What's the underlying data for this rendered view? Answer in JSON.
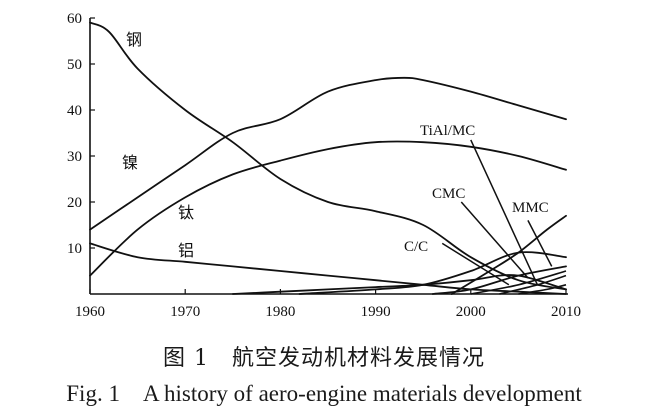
{
  "chart_data": {
    "type": "line",
    "x": [
      1960,
      1965,
      1970,
      1975,
      1980,
      1985,
      1990,
      1995,
      2000,
      2005,
      2010
    ],
    "xlim": [
      1960,
      2010
    ],
    "ylim": [
      0,
      60
    ],
    "xticks": [
      1960,
      1970,
      1980,
      1990,
      2000,
      2010
    ],
    "yticks": [
      10,
      20,
      30,
      40,
      50,
      60
    ],
    "grid": false,
    "legend": "inline labels",
    "series": [
      {
        "name": "钢",
        "x": [
          1960,
          1962,
          1965,
          1970,
          1975,
          1980,
          1985,
          1990,
          1995,
          2000,
          2005,
          2010
        ],
        "values": [
          59,
          57,
          49,
          40,
          33,
          25,
          20,
          18,
          15,
          8,
          3,
          1
        ]
      },
      {
        "name": "镍",
        "x": [
          1960,
          1965,
          1970,
          1975,
          1980,
          1985,
          1990,
          1993,
          1995,
          2000,
          2005,
          2010
        ],
        "values": [
          14,
          21,
          28,
          35,
          38,
          44,
          46.5,
          47,
          46.5,
          44,
          41,
          38
        ]
      },
      {
        "name": "钛",
        "x": [
          1960,
          1965,
          1970,
          1975,
          1980,
          1985,
          1990,
          1995,
          2000,
          2005,
          2010
        ],
        "values": [
          4,
          14,
          21,
          26,
          29,
          31.5,
          33,
          33,
          32,
          30,
          27
        ]
      },
      {
        "name": "铝",
        "x": [
          1960,
          1965,
          1970,
          1975,
          1980,
          1985,
          1990,
          1995,
          2000,
          2005,
          2010
        ],
        "values": [
          11,
          8,
          7,
          6,
          5,
          4,
          3,
          2,
          1,
          0.5,
          0
        ]
      },
      {
        "name": "C/C",
        "x": [
          1975,
          1980,
          1985,
          1990,
          1995,
          2000,
          2003,
          2005,
          2007,
          2010
        ],
        "values": [
          0,
          0.5,
          1,
          1.5,
          2,
          3,
          4,
          4,
          3,
          1
        ]
      },
      {
        "name": "CMC",
        "x": [
          1982,
          1990,
          1995,
          2000,
          2005,
          2010
        ],
        "values": [
          0,
          1,
          2,
          5,
          9,
          8
        ]
      },
      {
        "name": "MMC",
        "x": [
          1998,
          2002,
          2005,
          2008,
          2010
        ],
        "values": [
          0,
          5,
          9,
          14,
          17
        ]
      },
      {
        "name": "TiAl/MC",
        "x": [
          1996,
          2000,
          2005,
          2010
        ],
        "values": [
          0,
          1,
          4,
          6
        ]
      }
    ],
    "extra_lines": [
      {
        "x": [
          2000,
          2005,
          2010
        ],
        "values": [
          0,
          2,
          5
        ]
      },
      {
        "x": [
          2003,
          2007,
          2010
        ],
        "values": [
          0,
          2,
          4
        ]
      },
      {
        "x": [
          2005,
          2008,
          2010
        ],
        "values": [
          0,
          1,
          2
        ]
      }
    ],
    "annotations": [
      "钢",
      "镍",
      "钛",
      "铝",
      "C/C",
      "CMC",
      "MMC",
      "TiAl/MC"
    ]
  },
  "caption": {
    "cn": "图 1　航空发动机材料发展情况",
    "en": "Fig. 1　A history of aero-engine materials development"
  }
}
